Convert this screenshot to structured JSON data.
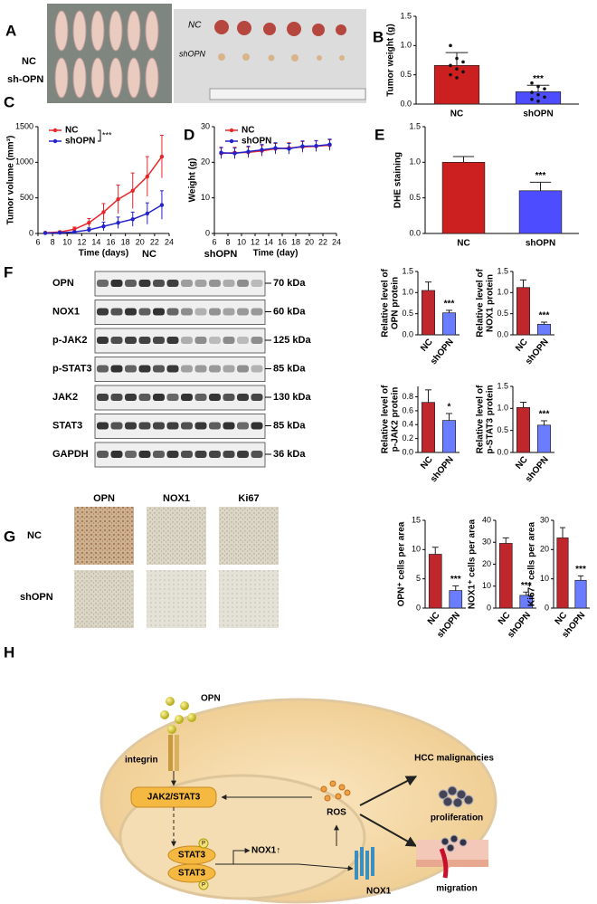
{
  "panels": [
    "A",
    "B",
    "C",
    "D",
    "E",
    "F",
    "G",
    "H"
  ],
  "photos": {
    "rows": [
      "NC",
      "sh-OPN"
    ],
    "notes": [
      "NC",
      "shOPN"
    ]
  },
  "blot": {
    "groups": [
      "NC",
      "shOPN"
    ],
    "rows": [
      {
        "label": "OPN",
        "size": "70 kDa"
      },
      {
        "label": "NOX1",
        "size": "60 kDa"
      },
      {
        "label": "p-JAK2",
        "size": "125 kDa"
      },
      {
        "label": "p-STAT3",
        "size": "85 kDa"
      },
      {
        "label": "JAK2",
        "size": "130 kDa"
      },
      {
        "label": "STAT3",
        "size": "85 kDa"
      },
      {
        "label": "GAPDH",
        "size": "36 kDa"
      }
    ]
  },
  "ihc": {
    "columns": [
      "OPN",
      "NOX1",
      "Ki67"
    ],
    "rows": [
      "NC",
      "shOPN"
    ]
  },
  "diagram": {
    "ligand": "OPN",
    "receptor": "integrin",
    "kinase": "JAK2/STAT3",
    "stat3_top": "STAT3",
    "stat3_bottom": "STAT3",
    "phospho_top": "P",
    "phospho_bottom": "P",
    "gene": "NOX1↑",
    "ros": "ROS",
    "nox1": "NOX1",
    "outcome": "HCC malignancies",
    "proliferation": "proliferation",
    "migration": "migration"
  },
  "chart_data": [
    {
      "type": "bar",
      "ylabel": "Tumor weight (g)",
      "categories": [
        "NC",
        "shOPN"
      ],
      "values": [
        0.66,
        0.21
      ],
      "errors": [
        0.22,
        0.11
      ],
      "colors": [
        "#cc1f1f",
        "#4d4dff"
      ],
      "points": [
        [
          1.0,
          0.78,
          0.72,
          0.66,
          0.6,
          0.55,
          0.5,
          0.45
        ],
        [
          0.36,
          0.3,
          0.26,
          0.2,
          0.16,
          0.12,
          0.08,
          0.05
        ]
      ],
      "ylim": [
        0,
        1.5
      ],
      "yticks": [
        {
          "value": 0,
          "label": "0.0"
        },
        0.5,
        {
          "value": 1,
          "label": "1.0"
        },
        1.5
      ],
      "annotation": "***"
    },
    {
      "type": "line",
      "ylabel": "Tumor volume (mm³)",
      "xlabel": "Time (days)",
      "x": [
        7,
        9,
        11,
        13,
        15,
        17,
        19,
        21,
        23
      ],
      "series": [
        {
          "name": "NC",
          "color": "#e8262a",
          "values": [
            10,
            20,
            60,
            150,
            300,
            480,
            600,
            800,
            1080
          ],
          "errors": [
            5,
            10,
            30,
            60,
            120,
            200,
            250,
            280,
            300
          ]
        },
        {
          "name": "shOPN",
          "color": "#2222cc",
          "values": [
            5,
            10,
            20,
            50,
            100,
            150,
            200,
            280,
            400
          ],
          "errors": [
            3,
            5,
            10,
            30,
            60,
            80,
            100,
            150,
            200
          ]
        }
      ],
      "xlim": [
        6,
        24
      ],
      "xticks": [
        6,
        8,
        10,
        12,
        14,
        16,
        18,
        20,
        22,
        24
      ],
      "ylim": [
        0,
        1500
      ],
      "yticks": [
        0,
        500,
        1000,
        1500
      ],
      "legend": "upper left",
      "annotation": "***"
    },
    {
      "type": "line",
      "ylabel": "Weight (g)",
      "xlabel": "Time (day)",
      "x": [
        7,
        9,
        11,
        13,
        15,
        17,
        19,
        21,
        23
      ],
      "series": [
        {
          "name": "NC",
          "color": "#e8262a",
          "values": [
            22.5,
            22.7,
            22.8,
            23.2,
            23.8,
            24,
            24.3,
            24.5,
            24.8
          ],
          "errors": [
            1.5,
            1.5,
            1.5,
            1.5,
            1.5,
            1.5,
            1.5,
            1.5,
            1.5
          ]
        },
        {
          "name": "shOPN",
          "color": "#2222cc",
          "values": [
            22.7,
            22.5,
            23,
            23.5,
            24,
            23.8,
            24.5,
            24.6,
            25
          ],
          "errors": [
            1.5,
            1.5,
            1.5,
            1.5,
            1.5,
            1.5,
            1.5,
            1.5,
            1.5
          ]
        }
      ],
      "xlim": [
        6,
        24
      ],
      "xticks": [
        6,
        8,
        10,
        12,
        14,
        16,
        18,
        20,
        22,
        24
      ],
      "ylim": [
        0,
        30
      ],
      "yticks": [
        0,
        10,
        20,
        30
      ],
      "legend": "upper left"
    },
    {
      "type": "bar",
      "ylabel": "DHE staining",
      "categories": [
        "NC",
        "shOPN"
      ],
      "values": [
        1.0,
        0.6
      ],
      "errors": [
        0.08,
        0.12
      ],
      "colors": [
        "#cc1f1f",
        "#4d4dff"
      ],
      "ylim": [
        0,
        1.5
      ],
      "yticks": [
        {
          "value": 0,
          "label": "0.0"
        },
        0.5,
        {
          "value": 1,
          "label": "1.0"
        },
        1.5
      ],
      "annotation": "***"
    },
    {
      "type": "bar",
      "ylabel": [
        "Relative level of",
        "OPN protein"
      ],
      "categories": [
        "NC",
        "shOPN"
      ],
      "values": [
        1.05,
        0.52
      ],
      "errors": [
        0.2,
        0.06
      ],
      "colors": [
        "#c0272d",
        "#6a7cff"
      ],
      "ylim": [
        0,
        1.5
      ],
      "yticks": [
        {
          "value": 0,
          "label": "0.0"
        },
        0.5,
        {
          "value": 1,
          "label": "1.0"
        },
        1.5
      ],
      "annotation": "***"
    },
    {
      "type": "bar",
      "ylabel": [
        "Relative level of",
        "NOX1 protein"
      ],
      "categories": [
        "NC",
        "shOPN"
      ],
      "values": [
        1.12,
        0.25
      ],
      "errors": [
        0.18,
        0.05
      ],
      "colors": [
        "#c0272d",
        "#6a7cff"
      ],
      "ylim": [
        0,
        1.5
      ],
      "yticks": [
        {
          "value": 0,
          "label": "0.0"
        },
        0.5,
        {
          "value": 1,
          "label": "1.0"
        },
        1.5
      ],
      "annotation": "***"
    },
    {
      "type": "bar",
      "ylabel": [
        "Relative level of",
        "p-JAK2 protein"
      ],
      "categories": [
        "NC",
        "shOPN"
      ],
      "values": [
        0.72,
        0.46
      ],
      "errors": [
        0.18,
        0.1
      ],
      "colors": [
        "#c0272d",
        "#6a7cff"
      ],
      "ylim": [
        0,
        0.95
      ],
      "yticks": [
        {
          "value": 0,
          "label": "0.0"
        },
        0.2,
        0.4,
        0.6,
        0.8
      ],
      "annotation": "*"
    },
    {
      "type": "bar",
      "ylabel": [
        "Relative level of",
        "p-STAT3 protein"
      ],
      "categories": [
        "NC",
        "shOPN"
      ],
      "values": [
        1.02,
        0.62
      ],
      "errors": [
        0.12,
        0.1
      ],
      "colors": [
        "#c0272d",
        "#6a7cff"
      ],
      "ylim": [
        0,
        1.5
      ],
      "yticks": [
        {
          "value": 0,
          "label": "0.0"
        },
        0.5,
        {
          "value": 1,
          "label": "1.0"
        },
        1.5
      ],
      "annotation": "***"
    },
    {
      "type": "bar",
      "ylabel": "OPN⁺ cells per area",
      "categories": [
        "NC",
        "shOPN"
      ],
      "values": [
        9.2,
        3
      ],
      "errors": [
        1.2,
        0.8
      ],
      "colors": [
        "#c0272d",
        "#6a7cff"
      ],
      "ylim": [
        0,
        15
      ],
      "yticks": [
        0,
        5,
        10,
        15
      ],
      "annotation": "***"
    },
    {
      "type": "bar",
      "ylabel": "NOX1⁺ cells per area",
      "categories": [
        "NC",
        "shOPN"
      ],
      "values": [
        29.5,
        5.8
      ],
      "errors": [
        2.5,
        1.5
      ],
      "colors": [
        "#c0272d",
        "#6a7cff"
      ],
      "ylim": [
        0,
        40
      ],
      "yticks": [
        0,
        10,
        20,
        30,
        40
      ],
      "annotation": "***"
    },
    {
      "type": "bar",
      "ylabel": "Ki67⁺ cells per area",
      "categories": [
        "NC",
        "shOPN"
      ],
      "values": [
        24,
        9.5
      ],
      "errors": [
        3.5,
        1.5
      ],
      "colors": [
        "#c0272d",
        "#6a7cff"
      ],
      "ylim": [
        0,
        30
      ],
      "yticks": [
        0,
        10,
        20,
        30
      ],
      "annotation": "***"
    }
  ]
}
